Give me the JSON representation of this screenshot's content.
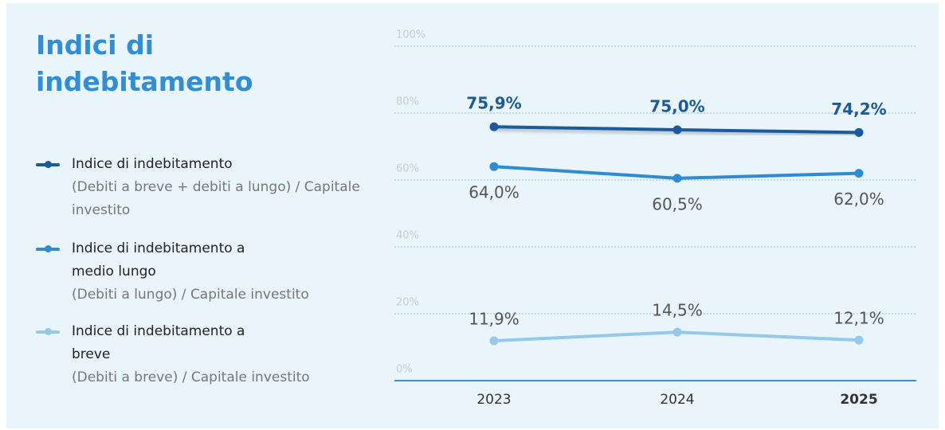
{
  "chart_data": {
    "type": "line",
    "title": "Indici di indebitamento",
    "categories": [
      "2023",
      "2024",
      "2025"
    ],
    "series": [
      {
        "name": "Indice di indebitamento",
        "description": "(Debiti a breve + debiti a lungo) / Capitale investito",
        "color": "#1a5a9e",
        "values": [
          75.9,
          75.0,
          74.2
        ],
        "value_labels": [
          "75,9%",
          "75,0%",
          "74,2%"
        ]
      },
      {
        "name": "Indice di indebitamento a medio lungo",
        "description": "(Debiti a lungo) / Capitale investito",
        "color": "#2e8bd6",
        "values": [
          64.0,
          60.5,
          62.0
        ],
        "value_labels": [
          "64,0%",
          "60,5%",
          "62,0%"
        ]
      },
      {
        "name": "Indice di indebitamento a breve",
        "description": "(Debiti a breve) / Capitale investito",
        "color": "#94c9ec",
        "values": [
          11.9,
          14.5,
          12.1
        ],
        "value_labels": [
          "11,9%",
          "14,5%",
          "12,1%"
        ]
      }
    ],
    "ylim": [
      0,
      100
    ],
    "yticks": [
      {
        "value": 0,
        "label": "0%"
      },
      {
        "value": 20,
        "label": "20%"
      },
      {
        "value": 40,
        "label": "40%"
      },
      {
        "value": 60,
        "label": "60%"
      },
      {
        "value": 80,
        "label": "80%"
      },
      {
        "value": 100,
        "label": "100%"
      }
    ],
    "grid": true
  }
}
